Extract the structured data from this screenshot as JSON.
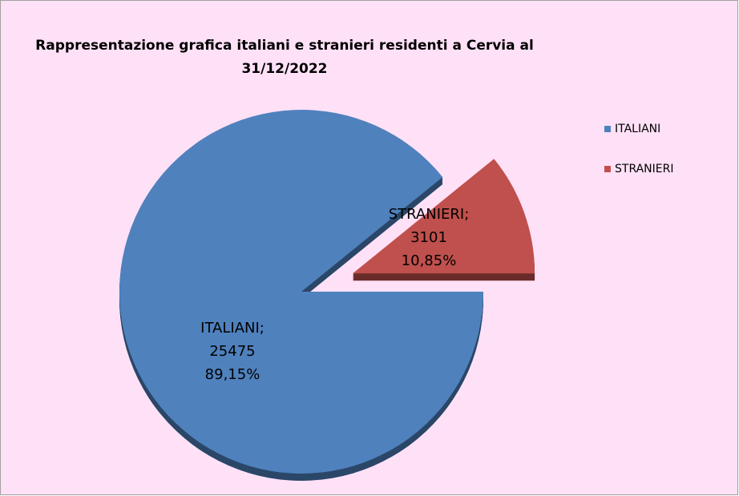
{
  "chart_data": {
    "type": "pie",
    "title": [
      "Rappresentazione grafica italiani e stranieri residenti a Cervia al",
      "31/12/2022"
    ],
    "categories": [
      "ITALIANI",
      "STRANIERI"
    ],
    "label_names": [
      "ITALIANI;",
      "STRANIERI;"
    ],
    "values": [
      25475,
      3101
    ],
    "percentages": [
      89.15,
      10.85
    ],
    "percentage_labels": [
      "89,15%",
      "10,85%"
    ],
    "colors": [
      "#4f81bd",
      "#c0504d"
    ],
    "exploded": [
      false,
      true
    ],
    "legend": "right"
  }
}
